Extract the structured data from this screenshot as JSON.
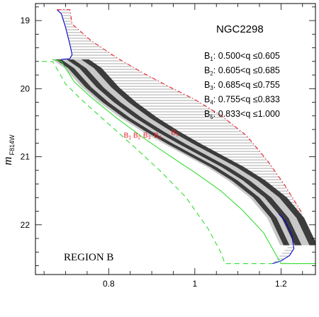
{
  "chart_data": {
    "type": "line",
    "title": "NGC2298",
    "annotation": "REGION B",
    "ylabel": {
      "main": "m",
      "sub": "F814W"
    },
    "xlim": [
      0.63,
      1.28
    ],
    "ylim": [
      22.73,
      18.75
    ],
    "xticks": [
      {
        "value": 0.8,
        "label": "0.8"
      },
      {
        "value": 1.0,
        "label": "1"
      },
      {
        "value": 1.2,
        "label": "1.2"
      }
    ],
    "yticks": [
      {
        "value": 19,
        "label": "19"
      },
      {
        "value": 20,
        "label": "20"
      },
      {
        "value": 21,
        "label": "21"
      },
      {
        "value": 22,
        "label": "22"
      }
    ],
    "bins": [
      {
        "name": "B",
        "sub": "1",
        "range": ":  0.500<q  ≤0.605"
      },
      {
        "name": "B",
        "sub": "2",
        "range": ":  0.605<q  ≤0.685"
      },
      {
        "name": "B",
        "sub": "3",
        "range": ":  0.685<q  ≤0.755"
      },
      {
        "name": "B",
        "sub": "4",
        "range": ":  0.755<q  ≤0.833"
      },
      {
        "name": "B",
        "sub": "5",
        "range": ":  0.833<q  ≤1.000"
      }
    ],
    "band_labels": [
      {
        "name": "B",
        "sub": "1",
        "x": 0.835,
        "y": 20.72
      },
      {
        "name": "B",
        "sub": "2",
        "x": 0.857,
        "y": 20.72
      },
      {
        "name": "B",
        "sub": "3",
        "x": 0.88,
        "y": 20.72
      },
      {
        "name": "B",
        "sub": "4",
        "x": 0.905,
        "y": 20.72
      },
      {
        "name": "B",
        "sub": "5",
        "x": 0.945,
        "y": 20.68
      }
    ],
    "series": [
      {
        "role": "msrl-left-edge",
        "color": "#0000cc",
        "x": [
          0.68,
          0.69,
          0.7,
          0.71,
          0.715,
          0.71,
          0.69
        ],
        "y": [
          18.84,
          18.9,
          19.1,
          19.35,
          19.5,
          19.56,
          19.57
        ]
      },
      {
        "role": "msrl-fiducial",
        "x": [
          0.69,
          0.72,
          0.76,
          0.8,
          0.85,
          0.9,
          0.95,
          1.0,
          1.05,
          1.1,
          1.15,
          1.19,
          1.22
        ],
        "y": [
          19.57,
          19.7,
          19.98,
          20.2,
          20.43,
          20.63,
          20.81,
          20.98,
          21.15,
          21.35,
          21.6,
          21.9,
          22.3
        ]
      },
      {
        "role": "binary-upper-edge",
        "color": "#e8202a",
        "style": "dashdot",
        "x": [
          0.68,
          0.71,
          0.715,
          0.76,
          0.82,
          0.88,
          0.94,
          1.0,
          1.06,
          1.12,
          1.17,
          1.21,
          1.25
        ],
        "y": [
          18.84,
          18.84,
          19.05,
          19.3,
          19.55,
          19.77,
          19.97,
          20.16,
          20.39,
          20.69,
          21.07,
          21.43,
          21.84
        ]
      },
      {
        "role": "msrl-right-edge",
        "color": "#0000cc",
        "x": [
          1.195,
          1.21,
          1.225,
          1.23,
          1.22,
          1.2,
          1.18
        ],
        "y": [
          21.84,
          21.95,
          22.15,
          22.35,
          22.45,
          22.53,
          22.57
        ]
      },
      {
        "role": "boundary-solid",
        "color": "#33dd33",
        "style": "solid",
        "x": [
          0.67,
          0.69,
          0.72,
          0.76,
          0.82,
          0.88,
          0.94,
          1.0,
          1.06,
          1.11,
          1.16,
          1.2,
          1.28
        ],
        "y": [
          19.57,
          19.6,
          19.9,
          20.13,
          20.44,
          20.72,
          20.98,
          21.23,
          21.5,
          21.78,
          22.12,
          22.57,
          22.57
        ]
      },
      {
        "role": "boundary-dashed",
        "color": "#33dd33",
        "style": "dashed",
        "x": [
          0.645,
          0.67,
          0.7,
          0.74,
          0.8,
          0.86,
          0.92,
          0.98,
          1.03,
          1.06,
          1.07,
          1.18
        ],
        "y": [
          19.6,
          19.6,
          19.93,
          20.18,
          20.52,
          20.86,
          21.21,
          21.6,
          22.05,
          22.4,
          22.57,
          22.57
        ]
      }
    ],
    "band_offsets": [
      {
        "d": -0.022,
        "color": "#c9c9c9"
      },
      {
        "d": -0.014,
        "color": "#3c3c3c"
      },
      {
        "d": 0.0,
        "color": "#c9c9c9"
      },
      {
        "d": 0.012,
        "color": "#3c3c3c"
      },
      {
        "d": 0.028,
        "color": "#c9c9c9"
      },
      {
        "d": 0.046,
        "color": "#3c3c3c"
      },
      {
        "d": 0.064,
        "color": "#c9c9c9"
      }
    ],
    "hatch_color": "#d4d4d4",
    "grid": false
  }
}
